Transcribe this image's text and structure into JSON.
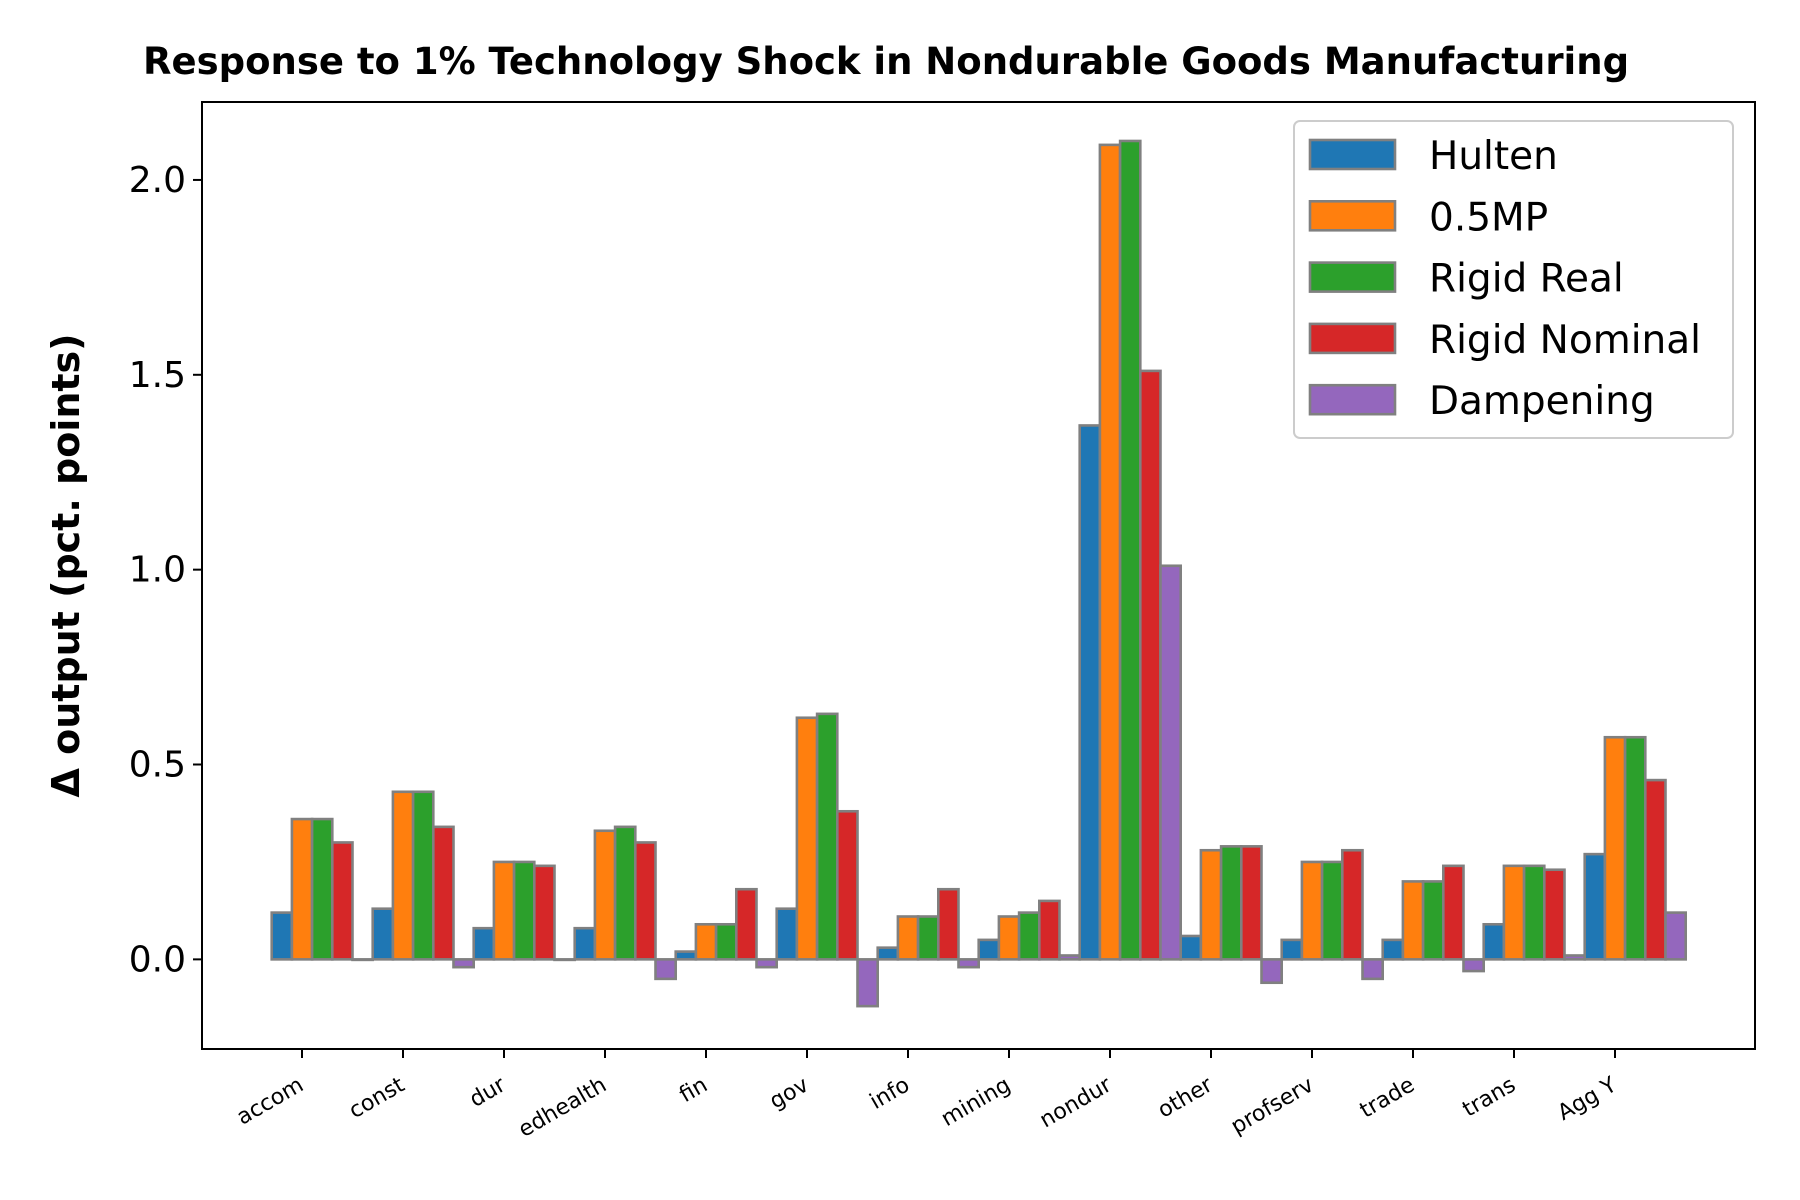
{
  "chart_data": {
    "type": "bar",
    "title": "Response to 1% Technology Shock in Nondurable Goods Manufacturing",
    "xlabel": "",
    "ylabel": "Δ output (pct. points)",
    "ylim": [
      -0.23,
      2.2
    ],
    "yticks": [
      0.0,
      0.5,
      1.0,
      1.5,
      2.0
    ],
    "ytick_labels": [
      "0.0",
      "0.5",
      "1.0",
      "1.5",
      "2.0"
    ],
    "grid": false,
    "legend_position": "top-right",
    "categories": [
      "accom",
      "const",
      "dur",
      "edhealth",
      "fin",
      "gov",
      "info",
      "mining",
      "nondur",
      "other",
      "profserv",
      "trade",
      "trans",
      "Agg Y"
    ],
    "series": [
      {
        "name": "Hulten",
        "color": "#1f77b4",
        "values": [
          0.12,
          0.13,
          0.08,
          0.08,
          0.02,
          0.13,
          0.03,
          0.05,
          1.37,
          0.06,
          0.05,
          0.05,
          0.09,
          0.27
        ]
      },
      {
        "name": "0.5MP",
        "color": "#ff7f0e",
        "values": [
          0.36,
          0.43,
          0.25,
          0.33,
          0.09,
          0.62,
          0.11,
          0.11,
          2.09,
          0.28,
          0.25,
          0.2,
          0.24,
          0.57
        ]
      },
      {
        "name": "Rigid Real",
        "color": "#2ca02c",
        "values": [
          0.36,
          0.43,
          0.25,
          0.34,
          0.09,
          0.63,
          0.11,
          0.12,
          2.1,
          0.29,
          0.25,
          0.2,
          0.24,
          0.57
        ]
      },
      {
        "name": "Rigid Nominal",
        "color": "#d62728",
        "values": [
          0.3,
          0.34,
          0.24,
          0.3,
          0.18,
          0.38,
          0.18,
          0.15,
          1.51,
          0.29,
          0.28,
          0.24,
          0.23,
          0.46
        ]
      },
      {
        "name": "Dampening",
        "color": "#9467bd",
        "values": [
          0.0,
          -0.02,
          0.0,
          -0.05,
          -0.02,
          -0.12,
          -0.02,
          0.01,
          1.01,
          -0.06,
          -0.05,
          -0.03,
          0.01,
          0.12
        ]
      }
    ],
    "bar_edge_color": "#808080"
  }
}
